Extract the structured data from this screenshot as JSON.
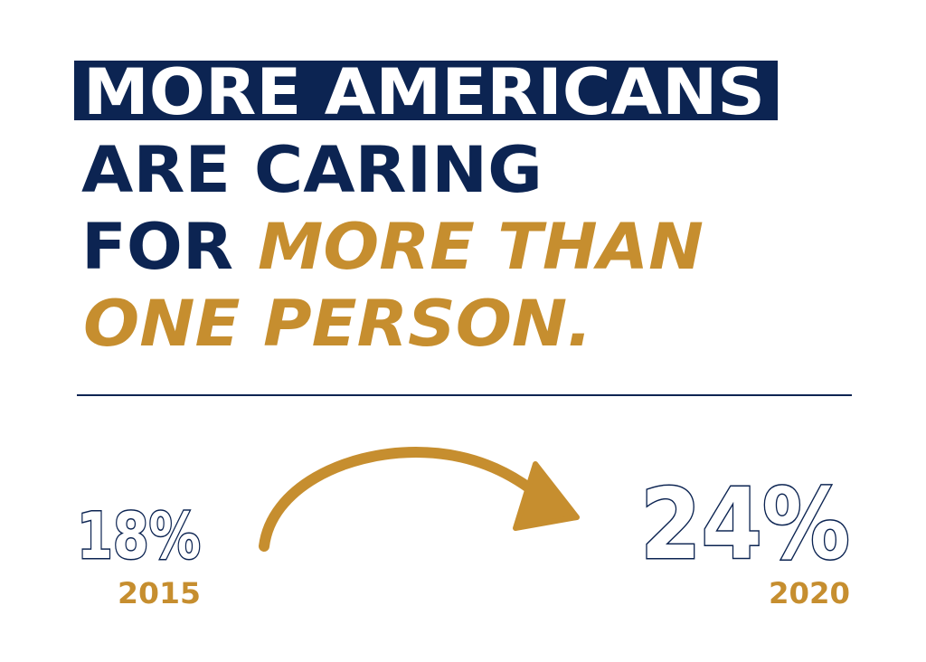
{
  "headline": {
    "line1": "MORE AMERICANS",
    "line2": "ARE CARING",
    "line3": {
      "plain": "FOR",
      "highlight": "MORE THAN"
    },
    "line4": "ONE PERSON."
  },
  "stats": [
    {
      "value": "18%",
      "year": "2015"
    },
    {
      "value": "24%",
      "year": "2020"
    }
  ]
}
